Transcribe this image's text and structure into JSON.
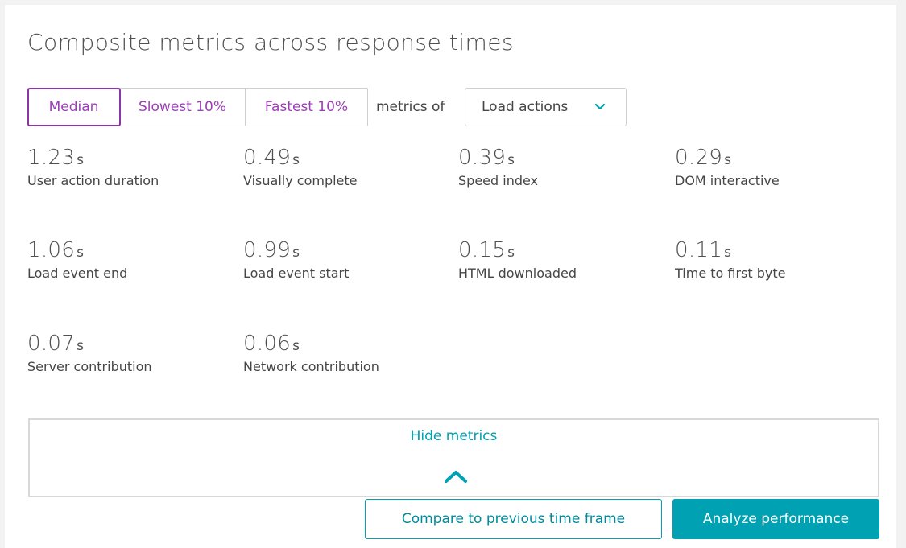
{
  "title": "Composite metrics across response times",
  "segments": [
    {
      "label": "Median",
      "active": true
    },
    {
      "label": "Slowest 10%",
      "active": false
    },
    {
      "label": "Fastest 10%",
      "active": false
    }
  ],
  "metrics_of_label": "metrics of",
  "dropdown": {
    "selected": "Load actions"
  },
  "metrics": [
    {
      "value": "1.23",
      "unit": "s",
      "label": "User action duration"
    },
    {
      "value": "0.49",
      "unit": "s",
      "label": "Visually complete"
    },
    {
      "value": "0.39",
      "unit": "s",
      "label": "Speed index"
    },
    {
      "value": "0.29",
      "unit": "s",
      "label": "DOM interactive"
    },
    {
      "value": "1.06",
      "unit": "s",
      "label": "Load event end"
    },
    {
      "value": "0.99",
      "unit": "s",
      "label": "Load event start"
    },
    {
      "value": "0.15",
      "unit": "s",
      "label": "HTML downloaded"
    },
    {
      "value": "0.11",
      "unit": "s",
      "label": "Time to first byte"
    },
    {
      "value": "0.07",
      "unit": "s",
      "label": "Server contribution"
    },
    {
      "value": "0.06",
      "unit": "s",
      "label": "Network contribution"
    }
  ],
  "hide_metrics_label": "Hide metrics",
  "buttons": {
    "compare": "Compare to previous time frame",
    "analyze": "Analyze performance"
  },
  "colors": {
    "accent": "#00a1b2",
    "segment": "#9b3fb5"
  }
}
